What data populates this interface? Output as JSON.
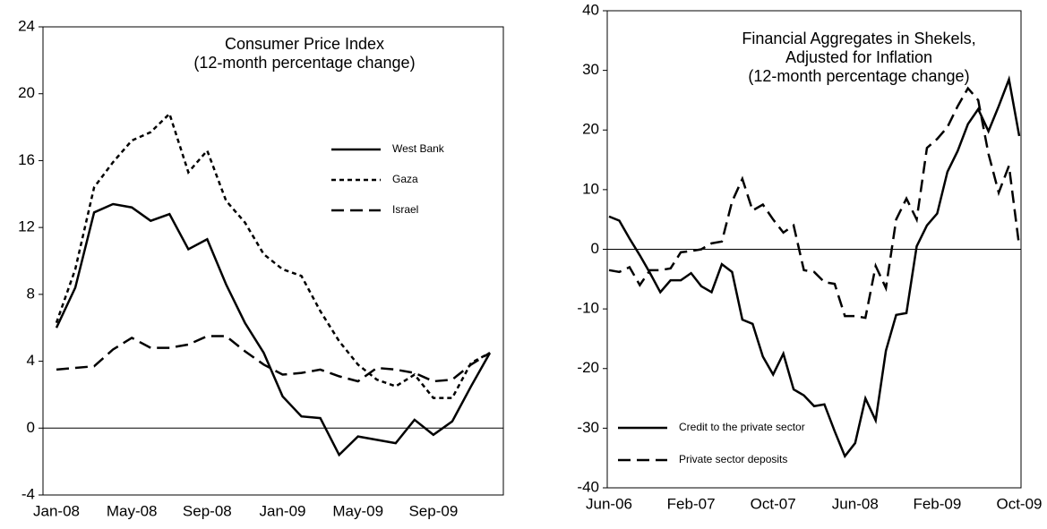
{
  "chart_data": [
    {
      "type": "line",
      "title": [
        "Consumer Price Index"
      ],
      "subtitle": "(12-month percentage change)",
      "categories": [
        "Jan-08",
        null,
        null,
        null,
        "May-08",
        null,
        null,
        null,
        "Sep-08",
        null,
        null,
        null,
        "Jan-09",
        null,
        null,
        null,
        "May-09",
        null,
        null,
        null,
        "Sep-09",
        null,
        null,
        null
      ],
      "series": [
        {
          "name": "West Bank",
          "color": "#000000",
          "dash": "solid",
          "values": [
            6.0,
            8.4,
            12.9,
            13.4,
            13.2,
            12.4,
            12.8,
            10.7,
            11.3,
            8.6,
            6.3,
            4.5,
            1.9,
            0.7,
            0.6,
            -1.6,
            -0.5,
            -0.7,
            -0.9,
            0.5,
            -0.4,
            0.4,
            2.5,
            4.5
          ]
        },
        {
          "name": "Gaza",
          "color": "#000000",
          "dash": "short",
          "values": [
            6.3,
            9.5,
            14.4,
            15.9,
            17.2,
            17.7,
            18.8,
            15.3,
            16.6,
            13.6,
            12.3,
            10.4,
            9.5,
            9.1,
            7.0,
            5.2,
            3.8,
            2.9,
            2.5,
            3.2,
            1.8,
            1.8,
            3.9,
            4.5
          ]
        },
        {
          "name": "Israel",
          "color": "#000000",
          "dash": "long",
          "values": [
            3.5,
            3.6,
            3.7,
            4.7,
            5.4,
            4.8,
            4.8,
            5.0,
            5.5,
            5.5,
            4.6,
            3.8,
            3.2,
            3.3,
            3.5,
            3.1,
            2.8,
            3.6,
            3.5,
            3.3,
            2.8,
            2.9,
            3.8,
            4.5
          ]
        }
      ],
      "ylim": [
        -4,
        24
      ],
      "yticks": [
        -4,
        0,
        4,
        8,
        12,
        16,
        20,
        24
      ],
      "legend": "upper right"
    },
    {
      "type": "line",
      "title": [
        "Financial Aggregates in Shekels,",
        "Adjusted for Inflation"
      ],
      "subtitle": "(12-month percentage change)",
      "categories": [
        "Jun-06",
        null,
        null,
        null,
        null,
        null,
        null,
        null,
        "Feb-07",
        null,
        null,
        null,
        null,
        null,
        null,
        null,
        "Oct-07",
        null,
        null,
        null,
        null,
        null,
        null,
        null,
        "Jun-08",
        null,
        null,
        null,
        null,
        null,
        null,
        null,
        "Feb-09",
        null,
        null,
        null,
        null,
        null,
        null,
        null,
        "Oct-09"
      ],
      "series": [
        {
          "name": "Credit to the  private sector",
          "color": "#000000",
          "dash": "solid",
          "values": [
            5.5,
            4.8,
            1.8,
            -1,
            -4,
            -7.2,
            -5.2,
            -5.2,
            -4,
            -6.2,
            -7.2,
            -2.5,
            -3.8,
            -11.8,
            -12.5,
            -18,
            -21,
            -17.5,
            -23.5,
            -24.5,
            -26.3,
            -26,
            -30.5,
            -34.7,
            -32.5,
            -25,
            -28.7,
            -17,
            -11,
            -10.7,
            0.5,
            4,
            6,
            13,
            16.5,
            21,
            23.5,
            19.8,
            24,
            28.5,
            19
          ]
        },
        {
          "name": "Private sector deposits",
          "color": "#000000",
          "dash": "long",
          "values": [
            -3.5,
            -3.8,
            -3,
            -6,
            -3.5,
            -3.5,
            -3.2,
            -0.5,
            -0.3,
            0,
            1,
            1.3,
            8,
            11.8,
            6.5,
            7.5,
            5,
            2.8,
            4,
            -3.5,
            -3.8,
            -5.5,
            -5.8,
            -11.2,
            -11.2,
            -11.5,
            -2.8,
            -6.5,
            5,
            8.5,
            5,
            17,
            18.5,
            20.5,
            24,
            27,
            25,
            16,
            9.5,
            14,
            0.5
          ]
        }
      ],
      "ylim": [
        -40,
        40
      ],
      "yticks": [
        -40,
        -30,
        -20,
        -10,
        0,
        10,
        20,
        30,
        40
      ],
      "legend": "lower left"
    }
  ]
}
